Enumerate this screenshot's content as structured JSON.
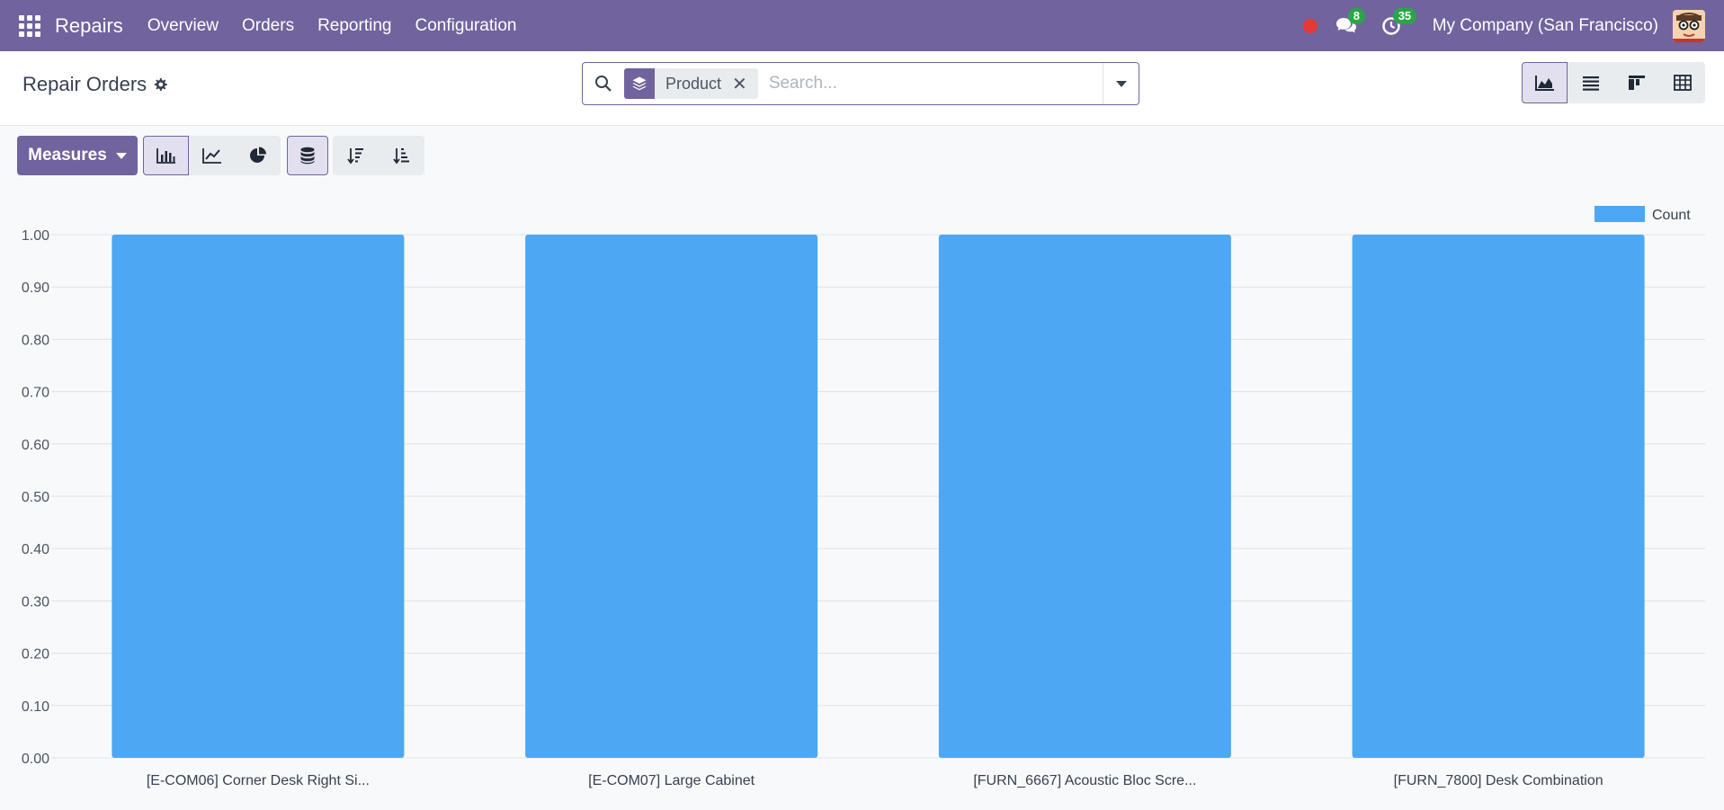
{
  "navbar": {
    "app_name": "Repairs",
    "menu": [
      "Overview",
      "Orders",
      "Reporting",
      "Configuration"
    ],
    "messages_count": "8",
    "activities_count": "35",
    "company": "My Company (San Francisco)"
  },
  "control": {
    "title": "Repair Orders",
    "search": {
      "facet_label": "Product",
      "placeholder": "Search..."
    }
  },
  "toolbar": {
    "measures_label": "Measures"
  },
  "colors": {
    "brand": "#71639e",
    "bar": "#4ea7f2",
    "badge": "#28a745",
    "record": "#e53935"
  },
  "chart_data": {
    "type": "bar",
    "categories": [
      "[E-COM06] Corner Desk Right Si...",
      "[E-COM07] Large Cabinet",
      "[FURN_6667] Acoustic Bloc Scre...",
      "[FURN_7800] Desk Combination"
    ],
    "series": [
      {
        "name": "Count",
        "values": [
          1,
          1,
          1,
          1
        ]
      }
    ],
    "ylim": [
      0,
      1
    ],
    "yticks": [
      "0.00",
      "0.10",
      "0.20",
      "0.30",
      "0.40",
      "0.50",
      "0.60",
      "0.70",
      "0.80",
      "0.90",
      "1.00"
    ],
    "grid": true,
    "legend": "top-right"
  }
}
